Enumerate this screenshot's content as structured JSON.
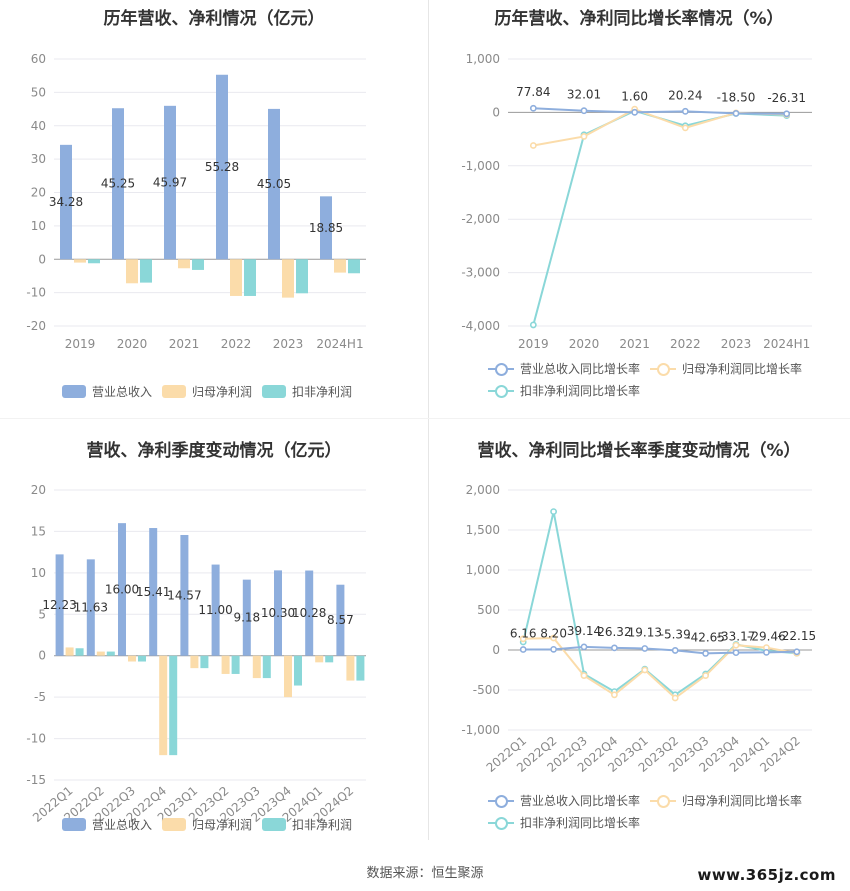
{
  "colors": {
    "revenue": "#8eaedd",
    "net_profit": "#fbdcaa",
    "deducted_profit": "#8ad7d8",
    "grid": "#e9e9ef",
    "axis_text": "#8a8a8a"
  },
  "legend_bar": [
    "营业总收入",
    "归母净利润",
    "扣非净利润"
  ],
  "legend_line": [
    "营业总收入同比增长率",
    "归母净利润同比增长率",
    "扣非净利润同比增长率"
  ],
  "source_text": "数据来源：恒生聚源",
  "watermark": "www.365jz.com",
  "chart_data": [
    {
      "id": "annual-amount",
      "type": "bar",
      "title": "历年营收、净利情况（亿元）",
      "categories": [
        "2019",
        "2020",
        "2021",
        "2022",
        "2023",
        "2024H1"
      ],
      "ylim": [
        -20,
        60
      ],
      "yticks": [
        -20,
        -10,
        0,
        10,
        20,
        30,
        40,
        50,
        60
      ],
      "series": [
        {
          "name": "营业总收入",
          "values": [
            34.28,
            45.25,
            45.97,
            55.28,
            45.05,
            18.85
          ],
          "labels": [
            "34.28",
            "45.25",
            "45.97",
            "55.28",
            "45.05",
            "18.85"
          ]
        },
        {
          "name": "归母净利润",
          "values": [
            -1.0,
            -7.2,
            -2.7,
            -11.0,
            -11.5,
            -4.0
          ]
        },
        {
          "name": "扣非净利润",
          "values": [
            -1.2,
            -7.0,
            -3.2,
            -11.0,
            -10.2,
            -4.2
          ]
        }
      ]
    },
    {
      "id": "annual-growth",
      "type": "line",
      "title": "历年营收、净利同比增长率情况（%）",
      "categories": [
        "2019",
        "2020",
        "2021",
        "2022",
        "2023",
        "2024H1"
      ],
      "ylim": [
        -4000,
        1000
      ],
      "yticks": [
        -4000,
        -3000,
        -2000,
        -1000,
        0,
        1000
      ],
      "ytick_labels": [
        "-4,000",
        "-3,000",
        "-2,000",
        "-1,000",
        "0",
        "1,000"
      ],
      "series": [
        {
          "name": "营业总收入同比增长率",
          "values": [
            77.84,
            32.01,
            1.6,
            20.24,
            -18.5,
            -26.31
          ],
          "labels": [
            "77.84",
            "32.01",
            "1.60",
            "20.24",
            "-18.50",
            "-26.31"
          ]
        },
        {
          "name": "归母净利润同比增长率",
          "values": [
            -620,
            -450,
            60,
            -290,
            -10,
            -40
          ]
        },
        {
          "name": "扣非净利润同比增长率",
          "values": [
            -3980,
            -420,
            30,
            -250,
            -20,
            -60
          ]
        }
      ]
    },
    {
      "id": "quarterly-amount",
      "type": "bar",
      "title": "营收、净利季度变动情况（亿元）",
      "categories": [
        "2022Q1",
        "2022Q2",
        "2022Q3",
        "2022Q4",
        "2023Q1",
        "2023Q2",
        "2023Q3",
        "2023Q4",
        "2024Q1",
        "2024Q2"
      ],
      "ylim": [
        -15,
        20
      ],
      "yticks": [
        -15,
        -10,
        -5,
        0,
        5,
        10,
        15,
        20
      ],
      "series": [
        {
          "name": "营业总收入",
          "values": [
            12.23,
            11.63,
            16.0,
            15.41,
            14.57,
            11.0,
            9.18,
            10.3,
            10.28,
            8.57
          ],
          "labels": [
            "12.23",
            "11.63",
            "16.00",
            "15.41",
            "14.57",
            "11.00",
            "9.18",
            "10.30",
            "10.28",
            "8.57"
          ]
        },
        {
          "name": "归母净利润",
          "values": [
            1.0,
            0.5,
            -0.7,
            -12.0,
            -1.5,
            -2.2,
            -2.7,
            -5.0,
            -0.8,
            -3.0
          ]
        },
        {
          "name": "扣非净利润",
          "values": [
            0.9,
            0.5,
            -0.7,
            -12.0,
            -1.5,
            -2.2,
            -2.7,
            -3.6,
            -0.8,
            -3.0
          ]
        }
      ]
    },
    {
      "id": "quarterly-growth",
      "type": "line",
      "title": "营收、净利同比增长率季度变动情况（%）",
      "categories": [
        "2022Q1",
        "2022Q2",
        "2022Q3",
        "2022Q4",
        "2023Q1",
        "2023Q2",
        "2023Q3",
        "2023Q4",
        "2024Q1",
        "2024Q2"
      ],
      "ylim": [
        -1000,
        2000
      ],
      "yticks": [
        -1000,
        -500,
        0,
        500,
        1000,
        1500,
        2000
      ],
      "ytick_labels": [
        "-1,000",
        "-500",
        "0",
        "500",
        "1,000",
        "1,500",
        "2,000"
      ],
      "series": [
        {
          "name": "营业总收入同比增长率",
          "values": [
            6.16,
            8.2,
            39.14,
            26.32,
            19.13,
            -5.39,
            -42.65,
            -33.17,
            -29.46,
            -22.15
          ],
          "labels": [
            "6.16",
            "8.20",
            "39.14",
            "26.32",
            "19.13",
            "-5.39",
            "-42.65",
            "-33.17",
            "-29.46",
            "-22.15"
          ]
        },
        {
          "name": "归母净利润同比增长率",
          "values": [
            140,
            150,
            -320,
            -560,
            -250,
            -600,
            -320,
            60,
            30,
            -40
          ]
        },
        {
          "name": "扣非净利润同比增长率",
          "values": [
            100,
            1730,
            -300,
            -520,
            -240,
            -560,
            -300,
            70,
            -10,
            -40
          ]
        }
      ]
    }
  ]
}
